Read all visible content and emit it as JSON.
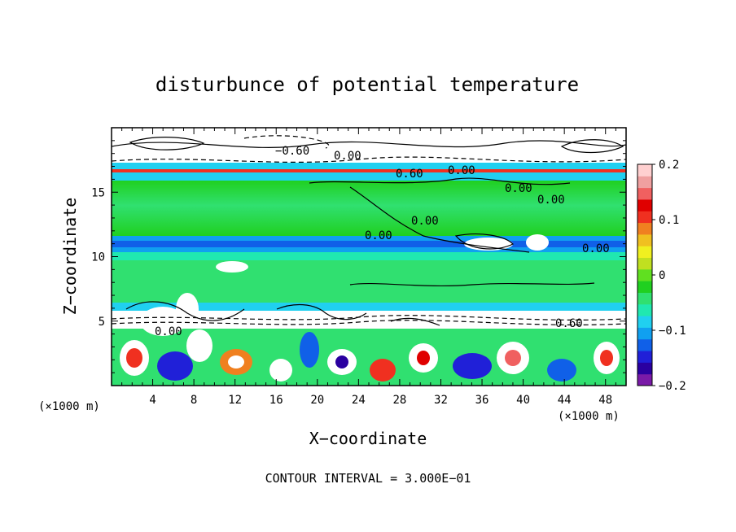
{
  "chart_data": {
    "type": "heatmap",
    "title": "disturbunce of potential temperature",
    "xlabel": "X−coordinate",
    "ylabel": "Z−coordinate",
    "x_unit": "(×1000 m)",
    "y_unit": "(×1000 m)",
    "xlim": [
      0,
      50
    ],
    "ylim": [
      0,
      20
    ],
    "x_ticks": [
      "4",
      "8",
      "12",
      "16",
      "20",
      "24",
      "28",
      "32",
      "36",
      "40",
      "44",
      "48"
    ],
    "y_ticks": [
      "5",
      "10",
      "15"
    ],
    "colorbar": {
      "range": [
        -0.2,
        0.2
      ],
      "ticks": [
        "0.2",
        "0.1",
        "0",
        "−0.1",
        "−0.2"
      ],
      "colors": [
        "#7a1aa8",
        "#2a00a0",
        "#2020d8",
        "#1060e8",
        "#10a0f0",
        "#20d0f0",
        "#20e8b0",
        "#30e070",
        "#20d020",
        "#60e020",
        "#c0e020",
        "#f0f020",
        "#f0c020",
        "#f08020",
        "#f03020",
        "#e00000",
        "#f06060",
        "#f0a0a0",
        "#ffd0d0"
      ]
    },
    "contour_labels": [
      "−0.60",
      "0.00",
      "0.60",
      "0.00",
      "0.00",
      "0.00",
      "0.00",
      "0.00",
      "0.00",
      "0.00",
      "0.60"
    ],
    "footer": "CONTOUR INTERVAL = 3.000E−01"
  }
}
